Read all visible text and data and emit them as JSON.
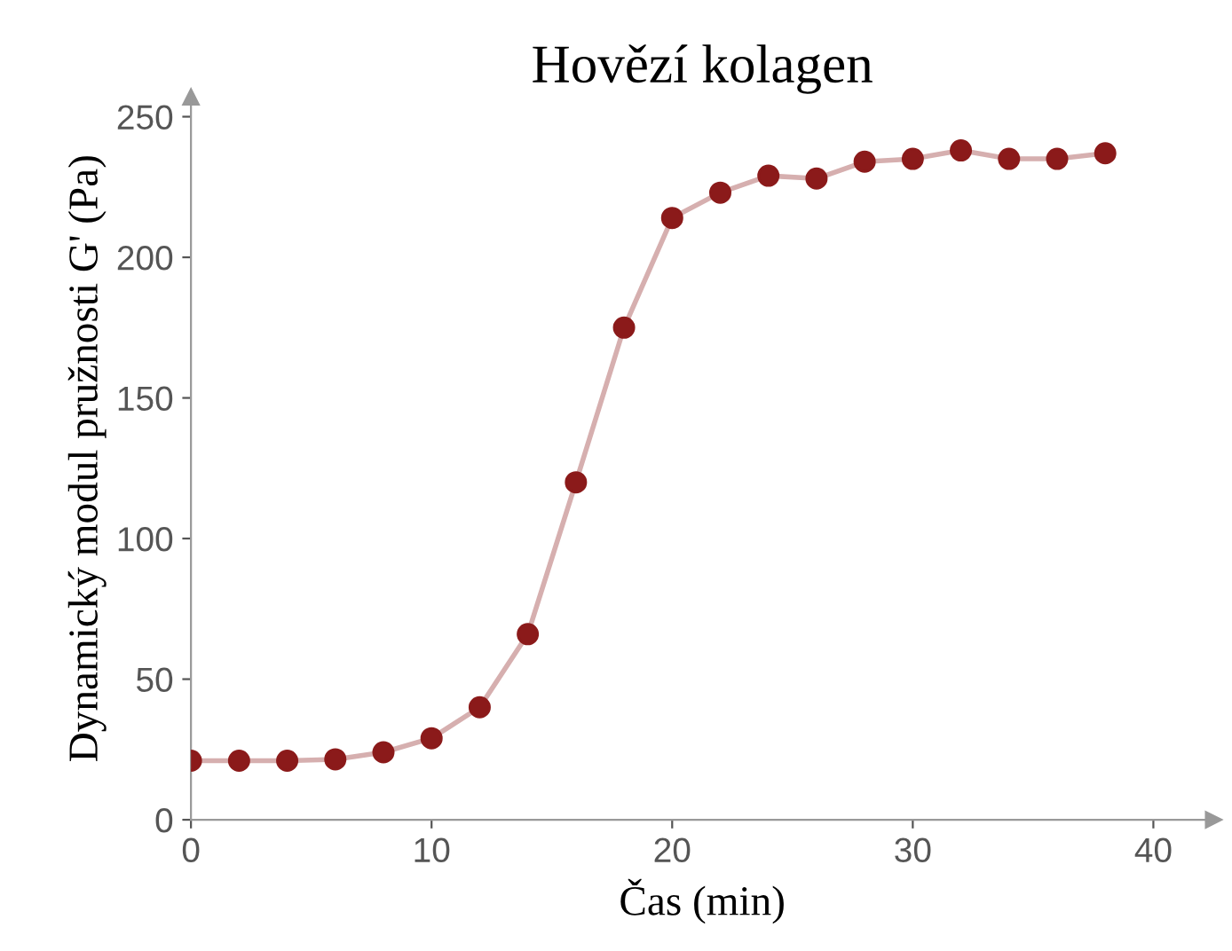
{
  "chart_data": {
    "type": "line",
    "title": "Hovězí kolagen",
    "xlabel": "Čas (min)",
    "ylabel": "Dynamický modul pružnosti G' (Pa)",
    "x": [
      0,
      2,
      4,
      6,
      8,
      10,
      12,
      14,
      16,
      18,
      20,
      22,
      24,
      26,
      28,
      30,
      32,
      34,
      36,
      38
    ],
    "series": [
      {
        "color": "#8b1a1a",
        "values": [
          21,
          21,
          21,
          21.5,
          24,
          29,
          40,
          66,
          120,
          175,
          214,
          223,
          229,
          228,
          234,
          235,
          238,
          235,
          235,
          237
        ]
      }
    ],
    "xlim": [
      0,
      42.5
    ],
    "ylim": [
      0,
      257
    ],
    "xticks": [
      0,
      10,
      20,
      30,
      40
    ],
    "yticks": [
      0,
      50,
      100,
      150,
      200,
      250
    ],
    "marker": "circle",
    "line_style": "solid",
    "grid": false,
    "legend": false
  }
}
